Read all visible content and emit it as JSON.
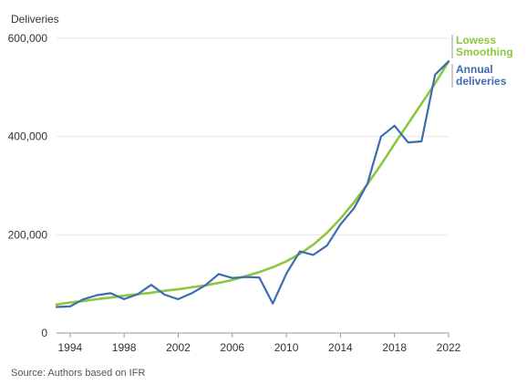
{
  "chart_data": {
    "type": "line",
    "ylabel": "Deliveries",
    "xlabel": "",
    "ylim": [
      0,
      600000
    ],
    "xlim": [
      1993,
      2022
    ],
    "x_ticks": [
      1994,
      1998,
      2002,
      2006,
      2010,
      2014,
      2018,
      2022
    ],
    "y_ticks": [
      0,
      200000,
      400000,
      600000
    ],
    "y_tick_labels": [
      "0",
      "200,000",
      "400,000",
      "600,000"
    ],
    "grid": "horizontal",
    "legend_position": "right",
    "series": [
      {
        "name": "Lowess Smoothing",
        "color": "#8DC63F",
        "x": [
          1993,
          1994,
          1995,
          1996,
          1997,
          1998,
          1999,
          2000,
          2001,
          2002,
          2003,
          2004,
          2005,
          2006,
          2007,
          2008,
          2009,
          2010,
          2011,
          2012,
          2013,
          2014,
          2015,
          2016,
          2017,
          2018,
          2019,
          2020,
          2021,
          2022
        ],
        "values": [
          58000,
          62000,
          65000,
          69000,
          72000,
          76000,
          79000,
          82000,
          86000,
          89000,
          93000,
          97000,
          102000,
          108000,
          116000,
          124000,
          134000,
          146000,
          161000,
          180000,
          204000,
          233000,
          266000,
          303000,
          343000,
          385000,
          426000,
          467000,
          508000,
          553000
        ]
      },
      {
        "name": "Annual deliveries",
        "color": "#3D6CB0",
        "x": [
          1993,
          1994,
          1995,
          1996,
          1997,
          1998,
          1999,
          2000,
          2001,
          2002,
          2003,
          2004,
          2005,
          2006,
          2007,
          2008,
          2009,
          2010,
          2011,
          2012,
          2013,
          2014,
          2015,
          2016,
          2017,
          2018,
          2019,
          2020,
          2021,
          2022
        ],
        "values": [
          53000,
          54000,
          69000,
          77000,
          81000,
          69000,
          79000,
          98000,
          78000,
          69000,
          81000,
          97000,
          120000,
          112000,
          114000,
          113000,
          60000,
          121000,
          166000,
          159000,
          178000,
          221000,
          254000,
          304000,
          400000,
          422000,
          388000,
          390000,
          526000,
          553000
        ]
      }
    ],
    "legend": [
      {
        "lines": [
          "Lowess",
          "Smoothing"
        ],
        "color": "#8DC63F"
      },
      {
        "lines": [
          "Annual",
          "deliveries"
        ],
        "color": "#3D6CB0"
      }
    ]
  },
  "source": "Source: Authors based on IFR"
}
